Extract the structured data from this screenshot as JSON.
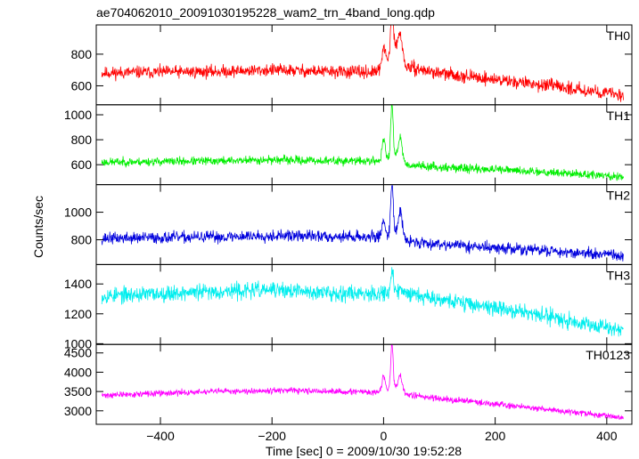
{
  "chart_data": {
    "type": "line",
    "title": "ae704062010_20091030195228_wam2_trn_4band_long.qdp",
    "xlabel": "Time [sec] 0 = 2009/10/30 19:52:28",
    "ylabel": "Counts/sec",
    "xlim": [
      -515,
      445
    ],
    "xticks": [
      -400,
      -200,
      0,
      200,
      400
    ],
    "grid": false,
    "panels": [
      {
        "name": "TH0",
        "color": "#ff0000",
        "ylim": [
          480,
          985
        ],
        "yticks": [
          600,
          800
        ],
        "baseline": [
          [
            -505,
            680
          ],
          [
            -450,
            685
          ],
          [
            -300,
            690
          ],
          [
            -200,
            700
          ],
          [
            -100,
            690
          ],
          [
            -20,
            685
          ],
          [
            0,
            700
          ],
          [
            20,
            860
          ],
          [
            40,
            720
          ],
          [
            100,
            680
          ],
          [
            200,
            640
          ],
          [
            300,
            600
          ],
          [
            430,
            540
          ]
        ],
        "noise": 28,
        "peaks": [
          [
            0,
            150,
            4
          ],
          [
            15,
            290,
            3
          ],
          [
            30,
            140,
            5
          ]
        ],
        "seed": 11
      },
      {
        "name": "TH1",
        "color": "#00ee00",
        "ylim": [
          440,
          1080
        ],
        "yticks": [
          600,
          800,
          1000
        ],
        "baseline": [
          [
            -505,
            620
          ],
          [
            -300,
            630
          ],
          [
            -200,
            640
          ],
          [
            -100,
            630
          ],
          [
            0,
            630
          ],
          [
            20,
            680
          ],
          [
            40,
            600
          ],
          [
            100,
            580
          ],
          [
            200,
            560
          ],
          [
            300,
            540
          ],
          [
            430,
            500
          ]
        ],
        "noise": 24,
        "peaks": [
          [
            0,
            170,
            4
          ],
          [
            15,
            430,
            3
          ],
          [
            30,
            180,
            5
          ]
        ],
        "seed": 23
      },
      {
        "name": "TH2",
        "color": "#0000dd",
        "ylim": [
          620,
          1200
        ],
        "yticks": [
          800,
          1000
        ],
        "baseline": [
          [
            -505,
            810
          ],
          [
            -300,
            820
          ],
          [
            -200,
            830
          ],
          [
            -100,
            825
          ],
          [
            0,
            820
          ],
          [
            20,
            860
          ],
          [
            40,
            790
          ],
          [
            100,
            770
          ],
          [
            200,
            740
          ],
          [
            300,
            720
          ],
          [
            430,
            680
          ]
        ],
        "noise": 30,
        "peaks": [
          [
            0,
            120,
            4
          ],
          [
            15,
            380,
            3
          ],
          [
            30,
            180,
            5
          ]
        ],
        "seed": 37
      },
      {
        "name": "TH3",
        "color": "#00eeee",
        "ylim": [
          995,
          1530
        ],
        "yticks": [
          1000,
          1200,
          1400
        ],
        "baseline": [
          [
            -505,
            1320
          ],
          [
            -300,
            1350
          ],
          [
            -200,
            1360
          ],
          [
            -100,
            1340
          ],
          [
            0,
            1340
          ],
          [
            20,
            1360
          ],
          [
            100,
            1300
          ],
          [
            200,
            1240
          ],
          [
            300,
            1180
          ],
          [
            430,
            1090
          ]
        ],
        "noise": 38,
        "peaks": [
          [
            15,
            120,
            3
          ]
        ],
        "seed": 53
      },
      {
        "name": "TH0123",
        "color": "#ff00ff",
        "ylim": [
          2650,
          4720
        ],
        "yticks": [
          3000,
          3500,
          4000,
          4500
        ],
        "baseline": [
          [
            -505,
            3400
          ],
          [
            -300,
            3500
          ],
          [
            -200,
            3530
          ],
          [
            -100,
            3500
          ],
          [
            0,
            3480
          ],
          [
            20,
            3620
          ],
          [
            40,
            3420
          ],
          [
            100,
            3320
          ],
          [
            200,
            3180
          ],
          [
            300,
            3030
          ],
          [
            430,
            2820
          ]
        ],
        "noise": 55,
        "peaks": [
          [
            0,
            420,
            4
          ],
          [
            15,
            1150,
            3
          ],
          [
            30,
            380,
            5
          ]
        ],
        "seed": 71
      }
    ]
  }
}
